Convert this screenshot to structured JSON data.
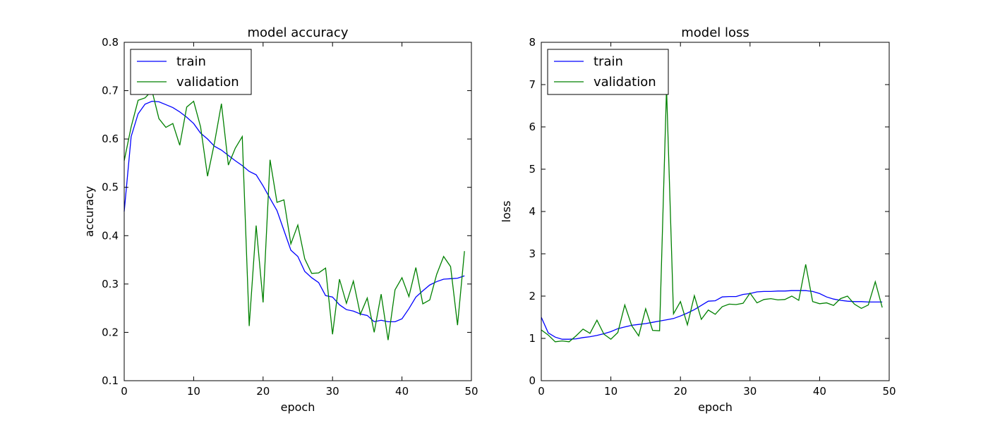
{
  "colors": {
    "train": "#0000ff",
    "validation": "#008000"
  },
  "chart_data": [
    {
      "type": "line",
      "title": "model accuracy",
      "xlabel": "epoch",
      "ylabel": "accuracy",
      "xlim": [
        0,
        50
      ],
      "ylim": [
        0.1,
        0.8
      ],
      "xticks": [
        "0",
        "10",
        "20",
        "30",
        "40",
        "50"
      ],
      "yticks": [
        "0.1",
        "0.2",
        "0.3",
        "0.4",
        "0.5",
        "0.6",
        "0.7",
        "0.8"
      ],
      "legend_position": "top-left",
      "grid": false,
      "x": [
        0,
        1,
        2,
        3,
        4,
        5,
        6,
        7,
        8,
        9,
        10,
        11,
        12,
        13,
        14,
        15,
        16,
        17,
        18,
        19,
        20,
        21,
        22,
        23,
        24,
        25,
        26,
        27,
        28,
        29,
        30,
        31,
        32,
        33,
        34,
        35,
        36,
        37,
        38,
        39,
        40,
        41,
        42,
        43,
        44,
        45,
        46,
        47,
        48,
        49
      ],
      "series": [
        {
          "name": "train",
          "values": [
            0.45,
            0.605,
            0.652,
            0.672,
            0.678,
            0.677,
            0.671,
            0.665,
            0.656,
            0.645,
            0.632,
            0.612,
            0.6,
            0.585,
            0.577,
            0.566,
            0.555,
            0.545,
            0.533,
            0.526,
            0.503,
            0.477,
            0.452,
            0.411,
            0.37,
            0.357,
            0.326,
            0.313,
            0.303,
            0.276,
            0.273,
            0.257,
            0.247,
            0.244,
            0.238,
            0.235,
            0.222,
            0.225,
            0.222,
            0.222,
            0.228,
            0.249,
            0.273,
            0.286,
            0.298,
            0.305,
            0.31,
            0.311,
            0.312,
            0.317
          ]
        },
        {
          "name": "validation",
          "values": [
            0.555,
            0.625,
            0.68,
            0.685,
            0.7,
            0.642,
            0.624,
            0.632,
            0.587,
            0.666,
            0.678,
            0.625,
            0.523,
            0.592,
            0.673,
            0.546,
            0.581,
            0.605,
            0.213,
            0.421,
            0.262,
            0.557,
            0.469,
            0.474,
            0.383,
            0.422,
            0.352,
            0.322,
            0.323,
            0.333,
            0.196,
            0.31,
            0.26,
            0.306,
            0.237,
            0.271,
            0.2,
            0.279,
            0.184,
            0.288,
            0.313,
            0.274,
            0.334,
            0.259,
            0.267,
            0.32,
            0.357,
            0.336,
            0.215,
            0.368
          ]
        }
      ]
    },
    {
      "type": "line",
      "title": "model loss",
      "xlabel": "epoch",
      "ylabel": "loss",
      "xlim": [
        0,
        50
      ],
      "ylim": [
        0,
        8
      ],
      "xticks": [
        "0",
        "10",
        "20",
        "30",
        "40",
        "50"
      ],
      "yticks": [
        "0",
        "1",
        "2",
        "3",
        "4",
        "5",
        "6",
        "7",
        "8"
      ],
      "legend_position": "top-left",
      "grid": false,
      "x": [
        0,
        1,
        2,
        3,
        4,
        5,
        6,
        7,
        8,
        9,
        10,
        11,
        12,
        13,
        14,
        15,
        16,
        17,
        18,
        19,
        20,
        21,
        22,
        23,
        24,
        25,
        26,
        27,
        28,
        29,
        30,
        31,
        32,
        33,
        34,
        35,
        36,
        37,
        38,
        39,
        40,
        41,
        42,
        43,
        44,
        45,
        46,
        47,
        48,
        49
      ],
      "series": [
        {
          "name": "train",
          "values": [
            1.5,
            1.13,
            1.03,
            0.98,
            0.98,
            0.99,
            1.02,
            1.04,
            1.07,
            1.11,
            1.16,
            1.23,
            1.27,
            1.31,
            1.33,
            1.35,
            1.38,
            1.41,
            1.44,
            1.47,
            1.53,
            1.6,
            1.68,
            1.78,
            1.88,
            1.89,
            1.98,
            1.99,
            1.99,
            2.04,
            2.06,
            2.1,
            2.11,
            2.11,
            2.12,
            2.12,
            2.13,
            2.13,
            2.13,
            2.11,
            2.06,
            1.98,
            1.93,
            1.9,
            1.88,
            1.87,
            1.87,
            1.86,
            1.86,
            1.86
          ]
        },
        {
          "name": "validation",
          "values": [
            1.2,
            1.08,
            0.92,
            0.94,
            0.92,
            1.06,
            1.22,
            1.12,
            1.43,
            1.1,
            0.98,
            1.14,
            1.79,
            1.3,
            1.06,
            1.7,
            1.19,
            1.18,
            6.92,
            1.58,
            1.87,
            1.32,
            2.01,
            1.45,
            1.67,
            1.57,
            1.75,
            1.81,
            1.8,
            1.83,
            2.07,
            1.84,
            1.92,
            1.94,
            1.91,
            1.92,
            2.0,
            1.9,
            2.75,
            1.87,
            1.82,
            1.84,
            1.78,
            1.94,
            2.0,
            1.81,
            1.71,
            1.79,
            2.34,
            1.73
          ]
        }
      ]
    }
  ]
}
